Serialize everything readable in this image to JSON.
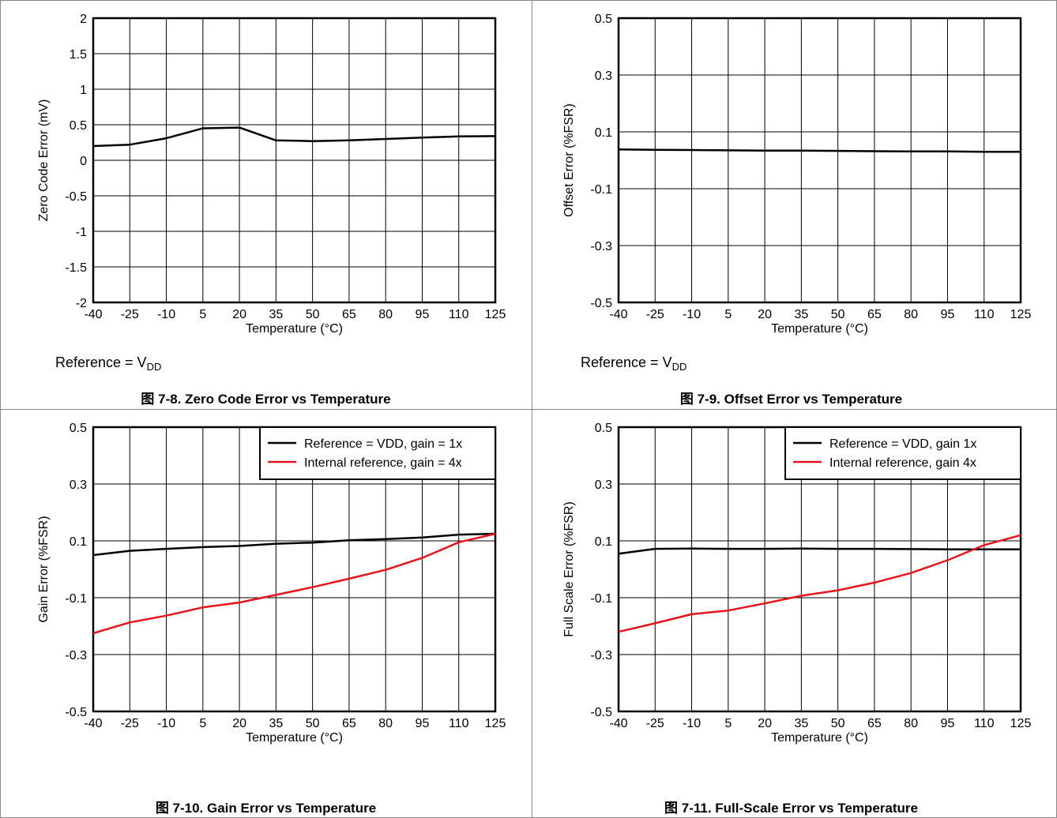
{
  "colors": {
    "black_series": "#000000",
    "red_series": "#e8141a",
    "grid": "#000000"
  },
  "panels": [
    {
      "id": "zero-code",
      "caption": "图 7-8. Zero Code Error vs Temperature",
      "note_main": "Reference = V",
      "note_sub": "DD",
      "chart_data": {
        "type": "line",
        "title": "",
        "xlabel": "Temperature (°C)",
        "ylabel": "Zero Code Error (mV)",
        "xlim": [
          -40,
          125
        ],
        "ylim": [
          -2,
          2
        ],
        "x_ticks": [
          "-40",
          "-25",
          "-10",
          "5",
          "20",
          "35",
          "50",
          "65",
          "80",
          "95",
          "110",
          "125"
        ],
        "y_ticks": [
          "-2",
          "-1.5",
          "-1",
          "-0.5",
          "0",
          "0.5",
          "1",
          "1.5",
          "2"
        ],
        "y_tick_values": [
          -2,
          -1.5,
          -1,
          -0.5,
          0,
          0.5,
          1,
          1.5,
          2
        ],
        "grid": true,
        "legend": null,
        "series": [
          {
            "color": "#000000",
            "x": [
              -40,
              -25,
              -10,
              5,
              20,
              35,
              50,
              65,
              80,
              95,
              110,
              125
            ],
            "y": [
              0.2,
              0.22,
              0.31,
              0.45,
              0.46,
              0.28,
              0.27,
              0.28,
              0.3,
              0.32,
              0.335,
              0.34
            ]
          }
        ]
      }
    },
    {
      "id": "offset",
      "caption": "图 7-9. Offset Error vs Temperature",
      "note_main": "Reference = V",
      "note_sub": "DD",
      "chart_data": {
        "type": "line",
        "title": "",
        "xlabel": "Temperature (°C)",
        "ylabel": "Offset Error (%FSR)",
        "xlim": [
          -40,
          125
        ],
        "ylim": [
          -0.5,
          0.5
        ],
        "x_ticks": [
          "-40",
          "-25",
          "-10",
          "5",
          "20",
          "35",
          "50",
          "65",
          "80",
          "95",
          "110",
          "125"
        ],
        "y_ticks": [
          "-0.5",
          "-0.3",
          "-0.1",
          "0.1",
          "0.3",
          "0.5"
        ],
        "y_tick_values": [
          -0.5,
          -0.3,
          -0.1,
          0.1,
          0.3,
          0.5
        ],
        "grid": true,
        "legend": null,
        "series": [
          {
            "color": "#000000",
            "x": [
              -40,
              -25,
              -10,
              5,
              20,
              35,
              50,
              65,
              80,
              95,
              110,
              125
            ],
            "y": [
              0.038,
              0.037,
              0.036,
              0.035,
              0.034,
              0.034,
              0.033,
              0.032,
              0.031,
              0.031,
              0.03,
              0.03
            ]
          }
        ]
      }
    },
    {
      "id": "gain",
      "caption": "图 7-10. Gain Error vs Temperature",
      "note_main": "",
      "note_sub": "",
      "chart_data": {
        "type": "line",
        "title": "",
        "xlabel": "Temperature (°C)",
        "ylabel": "Gain Error (%FSR)",
        "xlim": [
          -40,
          125
        ],
        "ylim": [
          -0.5,
          0.5
        ],
        "x_ticks": [
          "-40",
          "-25",
          "-10",
          "5",
          "20",
          "35",
          "50",
          "65",
          "80",
          "95",
          "110",
          "125"
        ],
        "y_ticks": [
          "-0.5",
          "-0.3",
          "-0.1",
          "0.1",
          "0.3",
          "0.5"
        ],
        "y_tick_values": [
          -0.5,
          -0.3,
          -0.1,
          0.1,
          0.3,
          0.5
        ],
        "grid": true,
        "legend": "top-right",
        "series": [
          {
            "name": "Reference = VDD, gain = 1x",
            "color": "#000000",
            "x": [
              -40,
              -25,
              -10,
              5,
              20,
              35,
              50,
              65,
              80,
              95,
              110,
              125
            ],
            "y": [
              0.05,
              0.065,
              0.072,
              0.078,
              0.082,
              0.09,
              0.094,
              0.102,
              0.106,
              0.112,
              0.122,
              0.125
            ]
          },
          {
            "name": "Internal reference, gain = 4x",
            "color": "#e8141a",
            "x": [
              -40,
              -25,
              -10,
              5,
              20,
              35,
              50,
              65,
              80,
              95,
              110,
              125
            ],
            "y": [
              -0.225,
              -0.187,
              -0.163,
              -0.134,
              -0.117,
              -0.09,
              -0.063,
              -0.033,
              -0.002,
              0.04,
              0.095,
              0.125
            ]
          }
        ]
      }
    },
    {
      "id": "full-scale",
      "caption": "图 7-11. Full-Scale Error vs Temperature",
      "note_main": "",
      "note_sub": "",
      "chart_data": {
        "type": "line",
        "title": "",
        "xlabel": "Temperature (°C)",
        "ylabel": "Full Scale Error (%FSR)",
        "xlim": [
          -40,
          125
        ],
        "ylim": [
          -0.5,
          0.5
        ],
        "x_ticks": [
          "-40",
          "-25",
          "-10",
          "5",
          "20",
          "35",
          "50",
          "65",
          "80",
          "95",
          "110",
          "125"
        ],
        "y_ticks": [
          "-0.5",
          "-0.3",
          "-0.1",
          "0.1",
          "0.3",
          "0.5"
        ],
        "y_tick_values": [
          -0.5,
          -0.3,
          -0.1,
          0.1,
          0.3,
          0.5
        ],
        "grid": true,
        "legend": "top-right",
        "series": [
          {
            "name": "Reference = VDD, gain 1x",
            "color": "#000000",
            "x": [
              -40,
              -25,
              -10,
              5,
              20,
              35,
              50,
              65,
              80,
              95,
              110,
              125
            ],
            "y": [
              0.055,
              0.072,
              0.073,
              0.072,
              0.072,
              0.073,
              0.072,
              0.072,
              0.071,
              0.07,
              0.07,
              0.07
            ]
          },
          {
            "name": "Internal reference, gain 4x",
            "color": "#e8141a",
            "x": [
              -40,
              -25,
              -10,
              5,
              20,
              35,
              50,
              65,
              80,
              95,
              110,
              125
            ],
            "y": [
              -0.22,
              -0.19,
              -0.158,
              -0.145,
              -0.12,
              -0.093,
              -0.074,
              -0.047,
              -0.013,
              0.032,
              0.085,
              0.12
            ]
          }
        ]
      }
    }
  ]
}
